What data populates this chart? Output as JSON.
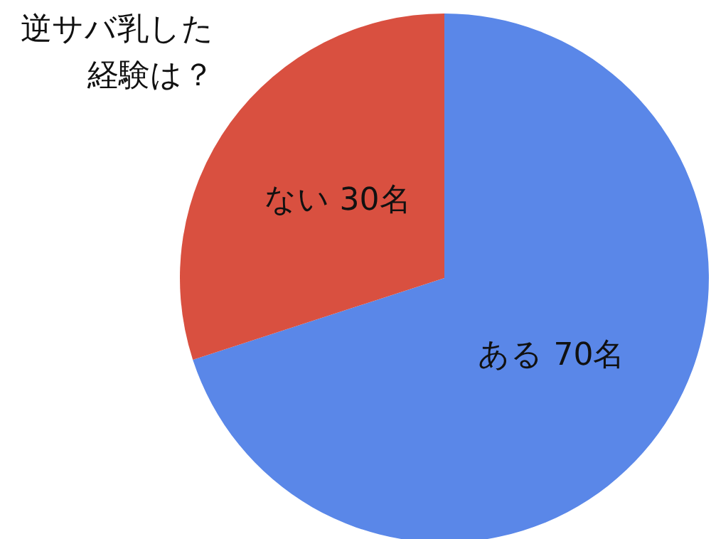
{
  "chart_data": {
    "type": "pie",
    "title": "逆サバ乳した経験は？",
    "categories": [
      "ある",
      "ない"
    ],
    "values": [
      70,
      30
    ],
    "colors": [
      "#5a87e8",
      "#d95040"
    ],
    "value_labels": [
      "70名",
      "30名"
    ],
    "legend": false
  }
}
